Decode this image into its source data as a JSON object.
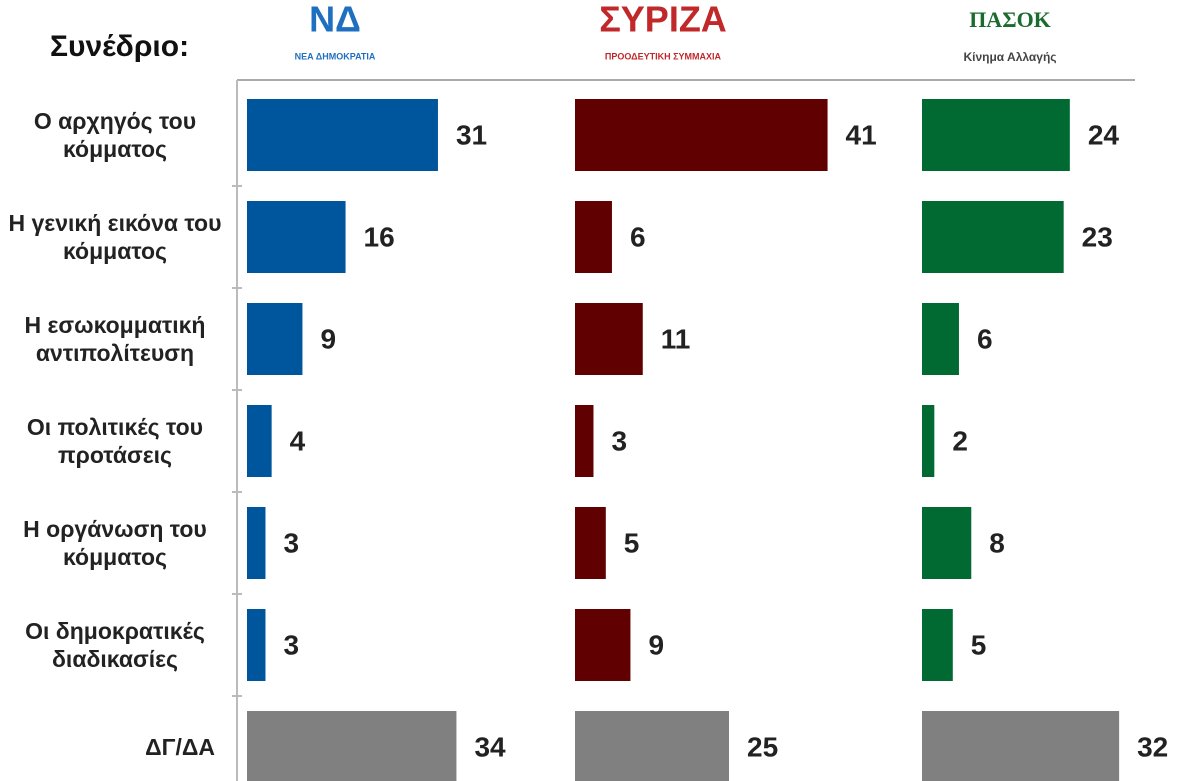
{
  "title": "Συνέδριο:",
  "chart_data": [
    {
      "type": "bar",
      "orientation": "horizontal",
      "title": "ΝΔ",
      "subtitle": "ΝΕΑ ΔΗΜΟΚΡΑΤΙΑ",
      "categories": [
        "Ο αρχηγός του κόμματος",
        "Η γενική εικόνα του κόμματος",
        "Η εσωκομματική αντιπολίτευση",
        "Οι πολιτικές του προτάσεις",
        "Η οργάνωση του κόμματος",
        "Οι δημοκρατικές διαδικασίες",
        "ΔΓ/ΔΑ"
      ],
      "values": [
        31,
        16,
        9,
        4,
        3,
        3,
        34
      ],
      "colors": [
        "#00569c",
        "#00569c",
        "#00569c",
        "#00569c",
        "#00569c",
        "#00569c",
        "#808080"
      ],
      "xlim": [
        0,
        50
      ]
    },
    {
      "type": "bar",
      "orientation": "horizontal",
      "title": "ΣΥΡΙΖΑ",
      "subtitle": "ΠΡΟΟΔΕΥΤΙΚΗ ΣΥΜΜΑΧΙΑ",
      "values": [
        41,
        6,
        11,
        3,
        5,
        9,
        25
      ],
      "colors": [
        "#610000",
        "#610000",
        "#610000",
        "#610000",
        "#610000",
        "#610000",
        "#808080"
      ],
      "xlim": [
        0,
        50
      ]
    },
    {
      "type": "bar",
      "orientation": "horizontal",
      "title": "ΠΑΣΟΚ",
      "subtitle": "Κίνημα Αλλαγής",
      "values": [
        24,
        23,
        6,
        2,
        8,
        5,
        32
      ],
      "colors": [
        "#006a32",
        "#006a32",
        "#006a32",
        "#006a32",
        "#006a32",
        "#006a32",
        "#808080"
      ],
      "xlim": [
        0,
        50
      ]
    }
  ]
}
